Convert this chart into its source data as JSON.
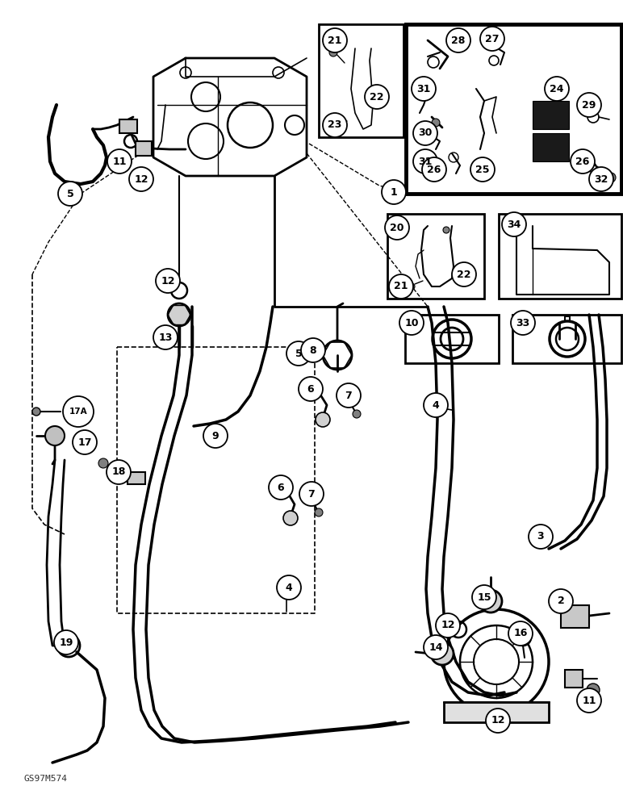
{
  "bg_color": "#ffffff",
  "line_color": "#000000",
  "watermark": "GS97M574",
  "fig_width": 7.72,
  "fig_height": 10.0,
  "dpi": 100
}
